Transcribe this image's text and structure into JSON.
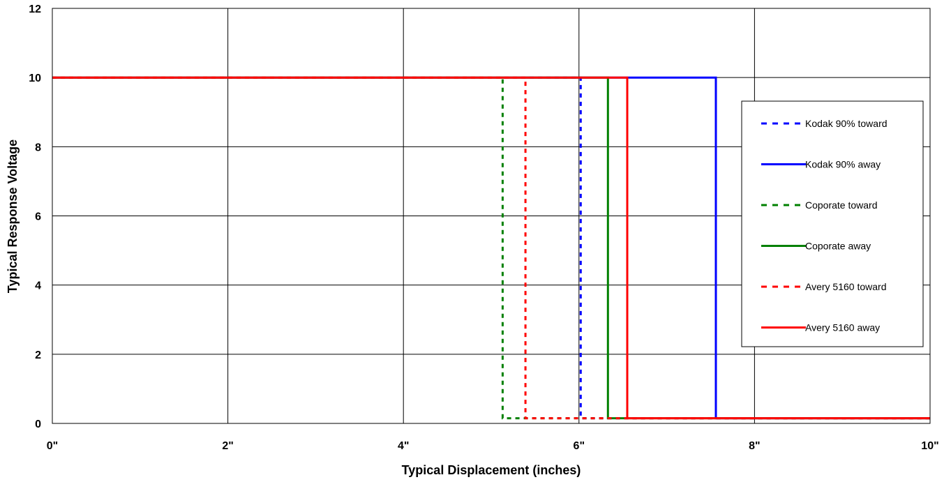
{
  "chart_data": {
    "type": "line",
    "title": "",
    "xlabel": "Typical Displacement (inches)",
    "ylabel": "Typical Response Voltage",
    "xlim": [
      0,
      10
    ],
    "ylim": [
      0,
      12
    ],
    "x_ticks": [
      {
        "value": 0,
        "label": "0\""
      },
      {
        "value": 2,
        "label": "2\""
      },
      {
        "value": 4,
        "label": "4\""
      },
      {
        "value": 6,
        "label": "6\""
      },
      {
        "value": 8,
        "label": "8\""
      },
      {
        "value": 10,
        "label": "10\""
      }
    ],
    "y_ticks": [
      {
        "value": 0,
        "label": "0"
      },
      {
        "value": 2,
        "label": "2"
      },
      {
        "value": 4,
        "label": "4"
      },
      {
        "value": 6,
        "label": "6"
      },
      {
        "value": 8,
        "label": "8"
      },
      {
        "value": 10,
        "label": "10"
      },
      {
        "value": 12,
        "label": "12"
      }
    ],
    "grid": true,
    "legend_position": "right",
    "series": [
      {
        "name": "Kodak 90% toward",
        "color": "#0000ff",
        "dashed": true,
        "points": [
          [
            0,
            10
          ],
          [
            6.02,
            10
          ],
          [
            6.02,
            0.15
          ],
          [
            10,
            0.15
          ]
        ]
      },
      {
        "name": "Kodak 90% away",
        "color": "#0000ff",
        "dashed": false,
        "points": [
          [
            0,
            10
          ],
          [
            7.56,
            10
          ],
          [
            7.56,
            0.15
          ],
          [
            10,
            0.15
          ]
        ]
      },
      {
        "name": "Coporate toward",
        "color": "#008000",
        "dashed": true,
        "points": [
          [
            0,
            10
          ],
          [
            5.13,
            10
          ],
          [
            5.13,
            0.15
          ],
          [
            10,
            0.15
          ]
        ]
      },
      {
        "name": "Coporate away",
        "color": "#008000",
        "dashed": false,
        "points": [
          [
            0,
            10
          ],
          [
            6.33,
            10
          ],
          [
            6.33,
            0.15
          ],
          [
            10,
            0.15
          ]
        ]
      },
      {
        "name": "Avery 5160 toward",
        "color": "#ff0000",
        "dashed": true,
        "points": [
          [
            0,
            10
          ],
          [
            5.39,
            10
          ],
          [
            5.39,
            0.15
          ],
          [
            10,
            0.15
          ]
        ]
      },
      {
        "name": "Avery 5160 away",
        "color": "#ff0000",
        "dashed": false,
        "points": [
          [
            0,
            10
          ],
          [
            6.55,
            10
          ],
          [
            6.55,
            0.15
          ],
          [
            10,
            0.15
          ]
        ]
      }
    ]
  }
}
